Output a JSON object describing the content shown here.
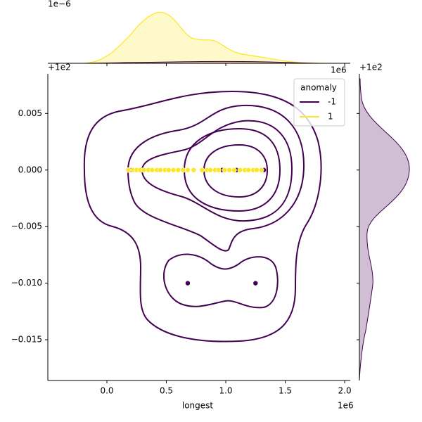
{
  "chart_data": {
    "type": "scatter",
    "xlabel": "longest",
    "x_offset": "1e6",
    "y_offset": "+1e2",
    "top_offset": "1e−6",
    "right_offset": "+1e2",
    "legend_title": "anomaly",
    "legend": "upper right",
    "xlim": [
      -0.497,
      2.047
    ],
    "ylim": [
      -0.0186,
      0.0085
    ],
    "xticks": [
      {
        "value": 0,
        "label": "0.0"
      },
      {
        "value": 0.5,
        "label": "0.5"
      },
      {
        "value": 1,
        "label": "1.0"
      },
      {
        "value": 1.5,
        "label": "1.5"
      },
      {
        "value": 2,
        "label": "2.0"
      }
    ],
    "yticks": [
      {
        "value": 0.005,
        "label": "0.005"
      },
      {
        "value": 0,
        "label": "0.000"
      },
      {
        "value": -0.005,
        "label": "−0.005"
      },
      {
        "value": -0.01,
        "label": "−0.010"
      },
      {
        "value": -0.015,
        "label": "−0.015"
      }
    ],
    "series": [
      {
        "name": "-1",
        "color": "#440154",
        "x": [
          0.21,
          0.97,
          1.09,
          1.32,
          0.68,
          1.25
        ],
        "y": [
          0,
          0,
          0,
          0,
          -0.01,
          -0.01
        ]
      },
      {
        "name": "1",
        "color": "#fde725",
        "x": [
          0.18,
          0.22,
          0.25,
          0.28,
          0.31,
          0.35,
          0.38,
          0.42,
          0.45,
          0.49,
          0.52,
          0.56,
          0.6,
          0.64,
          0.68,
          0.73,
          0.8,
          0.84,
          0.87,
          0.91,
          0.94,
          0.99,
          1.03,
          1.07,
          1.12,
          1.16,
          1.19,
          1.23,
          1.26,
          1.3
        ],
        "y": [
          0,
          0,
          0,
          0,
          0,
          0,
          0,
          0,
          0,
          0,
          0,
          0,
          0,
          0,
          0,
          0,
          0,
          0,
          0,
          0,
          0,
          0,
          0,
          0,
          0,
          0,
          0,
          0,
          0,
          0
        ]
      }
    ]
  }
}
